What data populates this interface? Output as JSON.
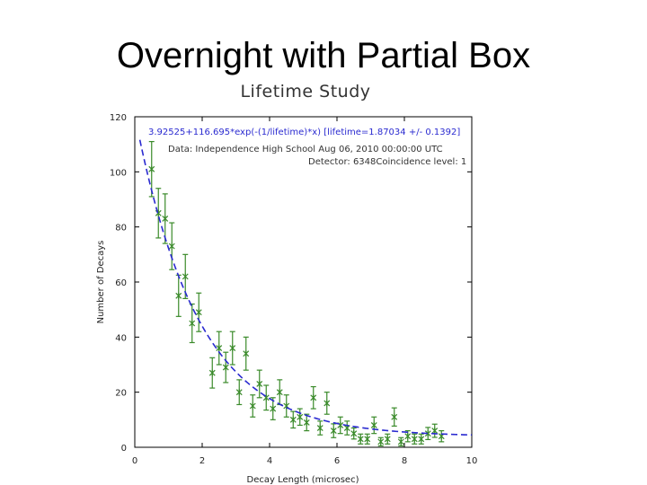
{
  "slide": {
    "title": "Overnight with Partial Box"
  },
  "chart_data": {
    "type": "scatter",
    "title": "Lifetime Study",
    "xlabel": "Decay Length (microsec)",
    "ylabel": "Number of Decays",
    "xlim": [
      0,
      10
    ],
    "ylim": [
      0,
      120
    ],
    "xticks": [
      0,
      2,
      4,
      6,
      8,
      10
    ],
    "yticks": [
      0,
      20,
      40,
      60,
      80,
      100,
      120
    ],
    "legend": [
      {
        "text": "3.92525+116.695*exp(-(1/lifetime)*x) [lifetime=1.87034 +/- 0.1392]",
        "color": "#2a2ad0"
      },
      {
        "text": "Data: Independence High School Aug 06, 2010 00:00:00 UTC",
        "color": "#333333"
      },
      {
        "text": "Detector: 6348Coincidence level: 1",
        "color": "#333333"
      }
    ],
    "fit": {
      "a": 3.92525,
      "b": 116.695,
      "lifetime": 1.87034,
      "x_range": [
        0.15,
        10
      ]
    },
    "series": [
      {
        "name": "Data",
        "color": "#3a8a2a",
        "points": [
          {
            "x": 0.5,
            "y": 101,
            "err": 10
          },
          {
            "x": 0.7,
            "y": 85,
            "err": 9
          },
          {
            "x": 0.9,
            "y": 83,
            "err": 9
          },
          {
            "x": 1.1,
            "y": 73,
            "err": 8.5
          },
          {
            "x": 1.3,
            "y": 55,
            "err": 7.5
          },
          {
            "x": 1.5,
            "y": 62,
            "err": 8
          },
          {
            "x": 1.7,
            "y": 45,
            "err": 7
          },
          {
            "x": 1.9,
            "y": 49,
            "err": 7
          },
          {
            "x": 2.3,
            "y": 27,
            "err": 5.5
          },
          {
            "x": 2.5,
            "y": 36,
            "err": 6
          },
          {
            "x": 2.7,
            "y": 29,
            "err": 5.5
          },
          {
            "x": 2.9,
            "y": 36,
            "err": 6
          },
          {
            "x": 3.1,
            "y": 20,
            "err": 4.5
          },
          {
            "x": 3.3,
            "y": 34,
            "err": 6
          },
          {
            "x": 3.5,
            "y": 15,
            "err": 4
          },
          {
            "x": 3.7,
            "y": 23,
            "err": 5
          },
          {
            "x": 3.9,
            "y": 18,
            "err": 4.5
          },
          {
            "x": 4.1,
            "y": 14,
            "err": 4
          },
          {
            "x": 4.3,
            "y": 20,
            "err": 4.5
          },
          {
            "x": 4.5,
            "y": 15,
            "err": 4
          },
          {
            "x": 4.7,
            "y": 10,
            "err": 3
          },
          {
            "x": 4.9,
            "y": 11,
            "err": 3
          },
          {
            "x": 5.1,
            "y": 9,
            "err": 3
          },
          {
            "x": 5.3,
            "y": 18,
            "err": 4
          },
          {
            "x": 5.5,
            "y": 7,
            "err": 2.5
          },
          {
            "x": 5.7,
            "y": 16,
            "err": 4
          },
          {
            "x": 5.9,
            "y": 6,
            "err": 2.5
          },
          {
            "x": 6.1,
            "y": 8,
            "err": 3
          },
          {
            "x": 6.3,
            "y": 7,
            "err": 2.5
          },
          {
            "x": 6.5,
            "y": 5,
            "err": 2
          },
          {
            "x": 6.7,
            "y": 3,
            "err": 1.8
          },
          {
            "x": 6.9,
            "y": 3,
            "err": 1.8
          },
          {
            "x": 7.1,
            "y": 8,
            "err": 3
          },
          {
            "x": 7.3,
            "y": 2,
            "err": 1.5
          },
          {
            "x": 7.5,
            "y": 3,
            "err": 1.8
          },
          {
            "x": 7.7,
            "y": 11,
            "err": 3.3
          },
          {
            "x": 7.9,
            "y": 2,
            "err": 1.5
          },
          {
            "x": 8.1,
            "y": 4,
            "err": 2
          },
          {
            "x": 8.3,
            "y": 3,
            "err": 1.8
          },
          {
            "x": 8.5,
            "y": 3,
            "err": 1.8
          },
          {
            "x": 8.7,
            "y": 5,
            "err": 2.2
          },
          {
            "x": 8.9,
            "y": 6,
            "err": 2.4
          },
          {
            "x": 9.1,
            "y": 4,
            "err": 2
          }
        ]
      }
    ]
  }
}
